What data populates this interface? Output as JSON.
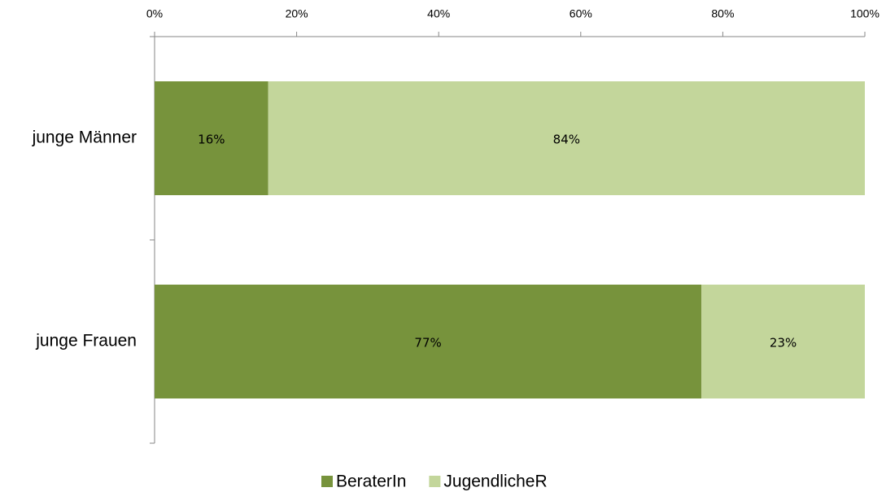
{
  "chart_data": {
    "type": "bar",
    "orientation": "horizontal",
    "stacked": true,
    "categories": [
      "junge Männer",
      "junge Frauen"
    ],
    "series": [
      {
        "name": "BeraterIn",
        "color": "#77933c",
        "values": [
          16,
          77
        ],
        "value_labels": [
          "16%",
          "77%"
        ]
      },
      {
        "name": "JugendlicheR",
        "color": "#c3d69b",
        "values": [
          84,
          23
        ],
        "value_labels": [
          "84%",
          "23%"
        ]
      }
    ],
    "xlim": [
      0,
      100
    ],
    "xticks": [
      {
        "value": 0,
        "label": "0%"
      },
      {
        "value": 20,
        "label": "20%"
      },
      {
        "value": 40,
        "label": "40%"
      },
      {
        "value": 60,
        "label": "60%"
      },
      {
        "value": 80,
        "label": "80%"
      },
      {
        "value": 100,
        "label": "100%"
      }
    ]
  }
}
